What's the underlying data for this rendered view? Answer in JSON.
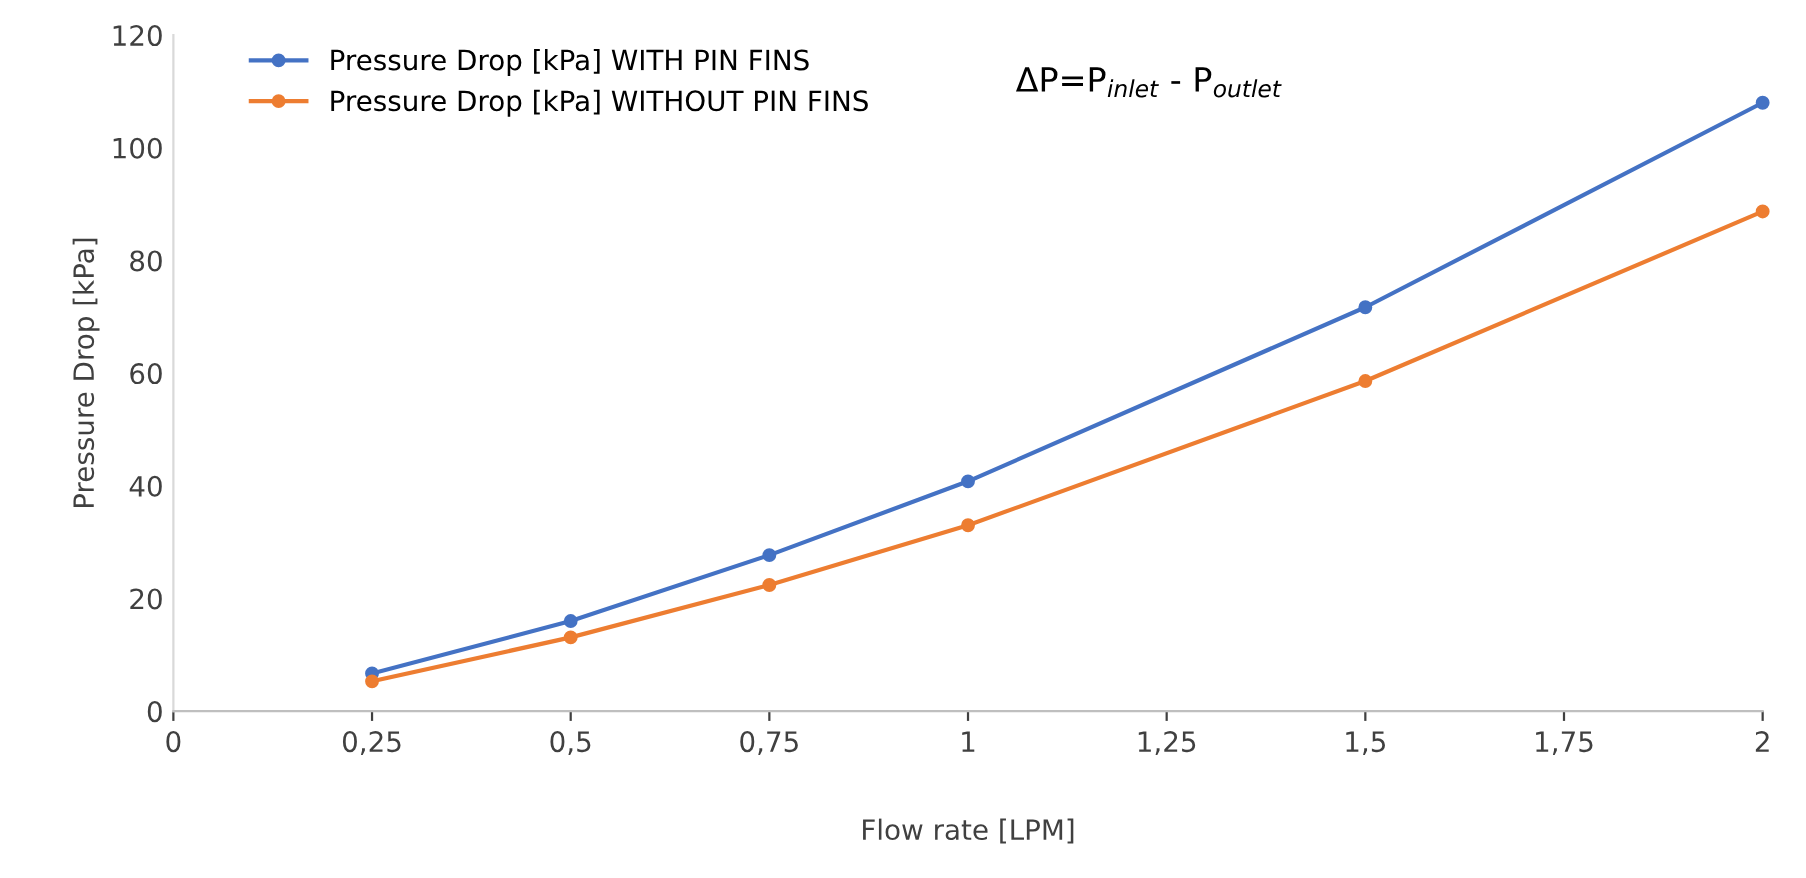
{
  "chart_data": {
    "type": "line",
    "xlabel": "Flow rate [LPM]",
    "ylabel": "Pressure Drop [kPa]",
    "x": [
      0.25,
      0.5,
      0.75,
      1,
      1.5,
      2
    ],
    "series": [
      {
        "name": "Pressure Drop [kPa] WITH PIN FINS",
        "color": "#4472c4",
        "values": [
          6.7,
          16,
          27.7,
          40.8,
          71.7,
          108
        ]
      },
      {
        "name": "Pressure Drop [kPa] WITHOUT PIN FINS",
        "color": "#ed7d31",
        "values": [
          5.3,
          13.1,
          22.4,
          33,
          58.6,
          88.7
        ]
      }
    ],
    "xlim": [
      0,
      2
    ],
    "ylim": [
      0,
      120
    ],
    "xticks": [
      0,
      {
        "value": 0.25,
        "label": "0,25"
      },
      {
        "value": 0.5,
        "label": "0,5"
      },
      {
        "value": 0.75,
        "label": "0,75"
      },
      1,
      {
        "value": 1.25,
        "label": "1,25"
      },
      {
        "value": 1.5,
        "label": "1,5"
      },
      {
        "value": 1.75,
        "label": "1,75"
      },
      2
    ],
    "yticks": [
      0,
      20,
      40,
      60,
      80,
      100,
      120
    ],
    "annotations": [
      "ΔP=P$_{inlet}$ - P$_{outlet}$"
    ],
    "grid": false,
    "legend": "top left",
    "marker": "circle",
    "line_style": "solid"
  }
}
